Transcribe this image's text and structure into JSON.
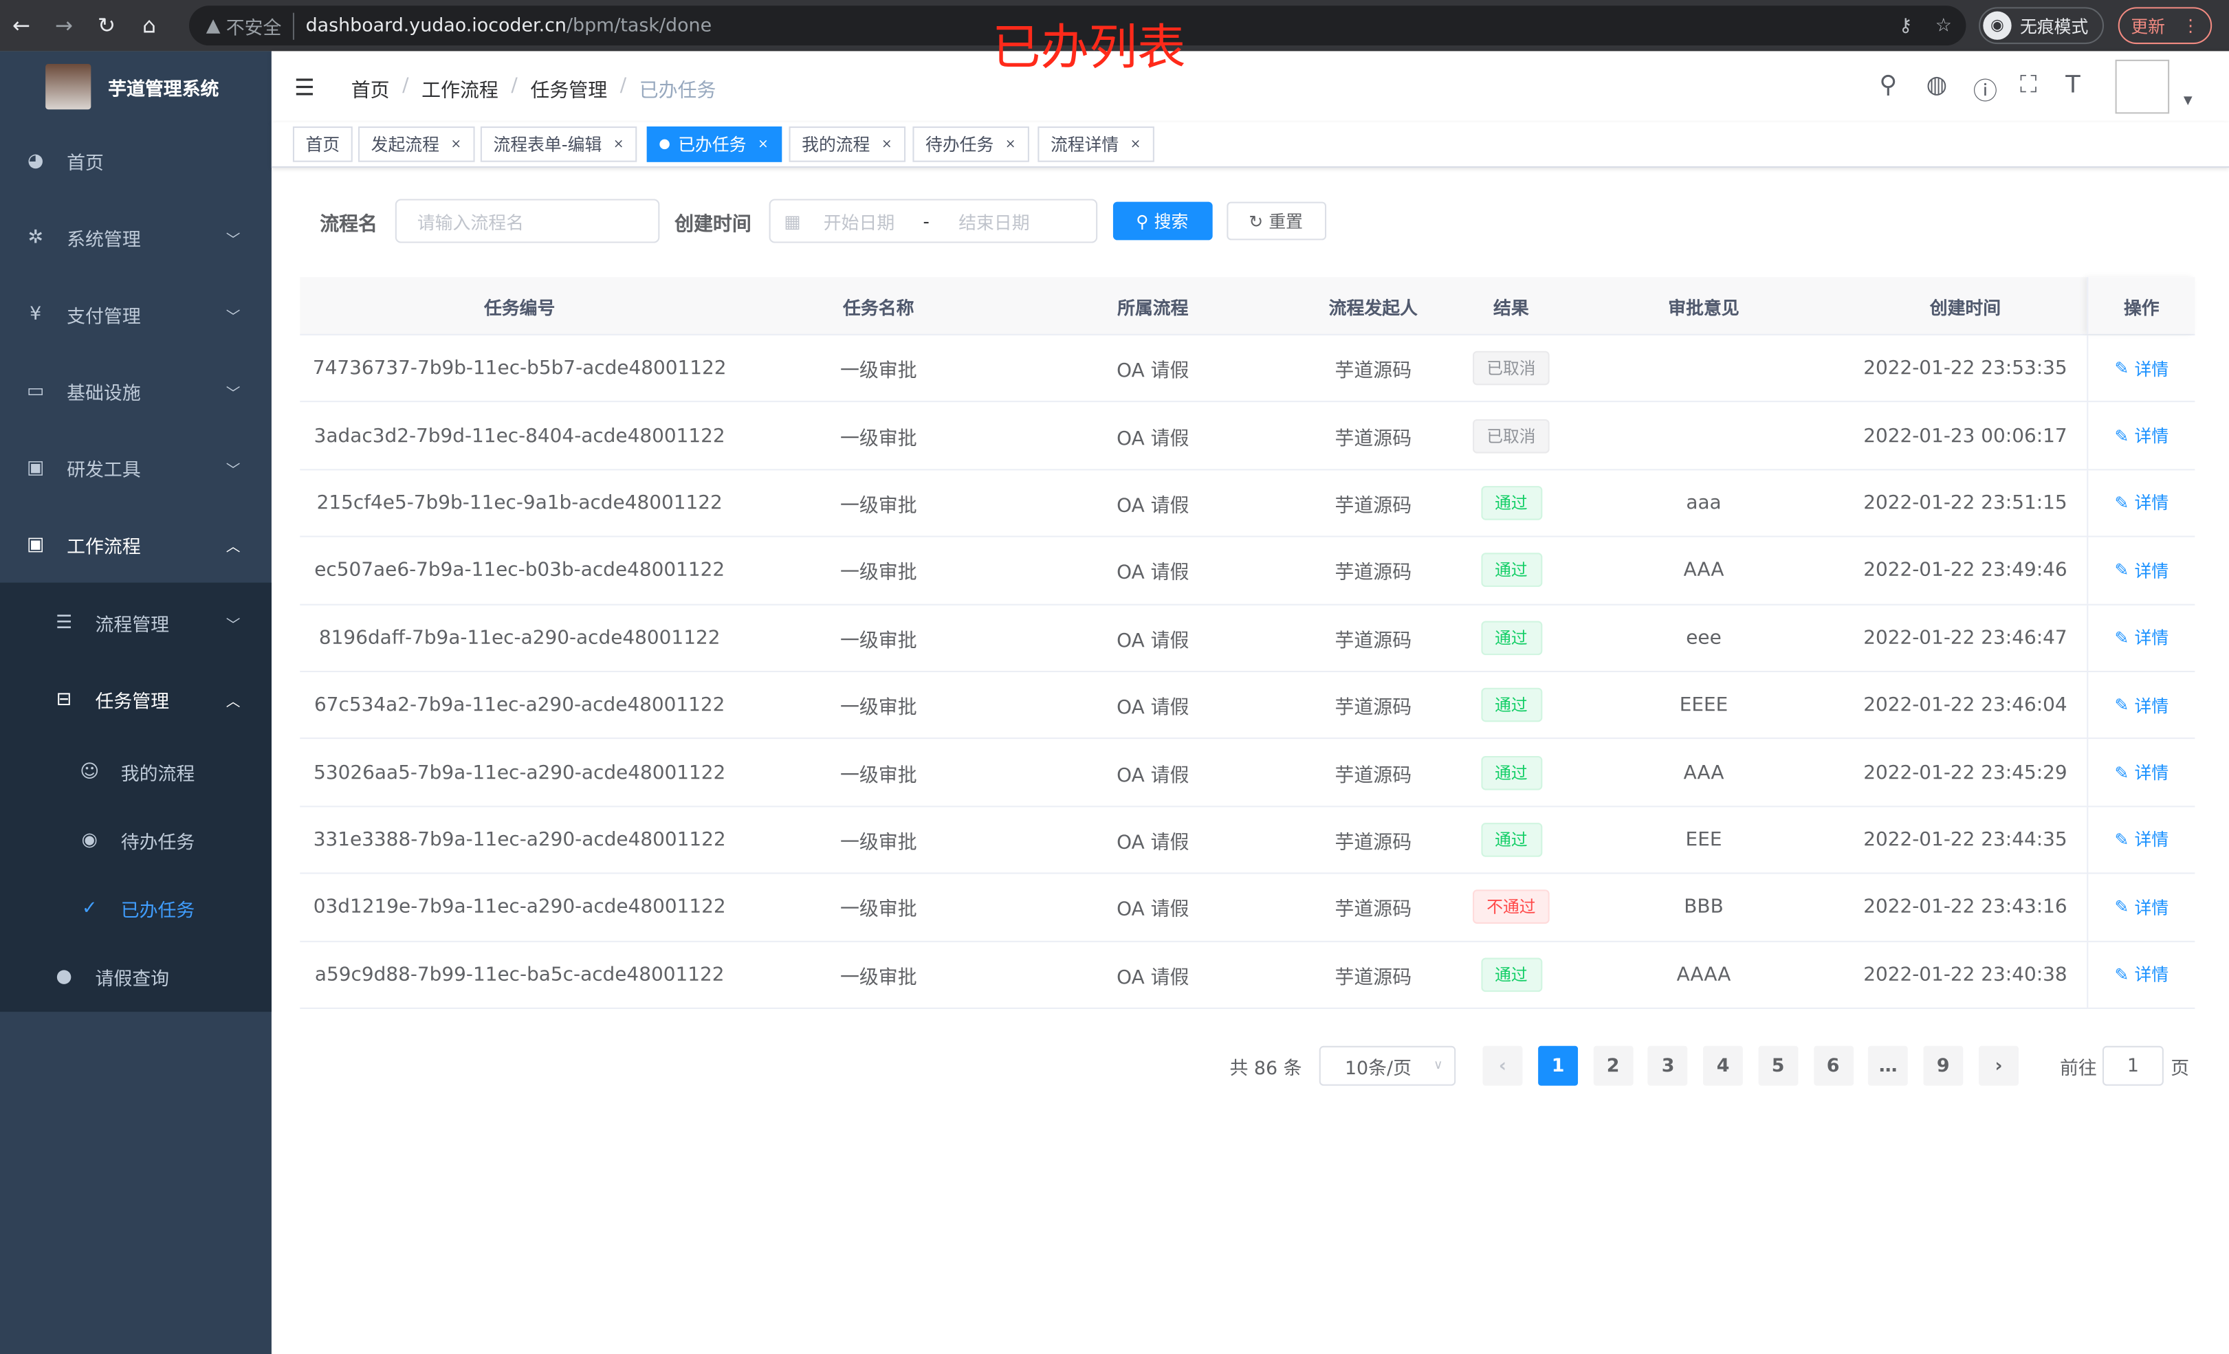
{
  "browser": {
    "insecure": "不安全",
    "url_host": "dashboard.yudao.iocoder.cn",
    "url_path": "/bpm/task/done",
    "incognito": "无痕模式",
    "update": "更新"
  },
  "annotation": "已办列表",
  "sidebar": {
    "title": "芋道管理系统",
    "items": [
      {
        "label": "首页",
        "icon": "dashboard-icon"
      },
      {
        "label": "系统管理",
        "icon": "gear-icon"
      },
      {
        "label": "支付管理",
        "icon": "yen-icon"
      },
      {
        "label": "基础设施",
        "icon": "monitor-icon"
      },
      {
        "label": "研发工具",
        "icon": "toolbox-icon"
      },
      {
        "label": "工作流程",
        "icon": "toolbox-icon"
      }
    ],
    "sub": [
      {
        "label": "流程管理"
      },
      {
        "label": "任务管理"
      }
    ],
    "subsub": [
      {
        "label": "我的流程"
      },
      {
        "label": "待办任务"
      },
      {
        "label": "已办任务"
      }
    ],
    "leave": "请假查询",
    "accent": "#409eff"
  },
  "breadcrumb": [
    "首页",
    "工作流程",
    "任务管理",
    "已办任务"
  ],
  "tags": [
    {
      "label": "首页"
    },
    {
      "label": "发起流程"
    },
    {
      "label": "流程表单-编辑"
    },
    {
      "label": "已办任务"
    },
    {
      "label": "我的流程"
    },
    {
      "label": "待办任务"
    },
    {
      "label": "流程详情"
    }
  ],
  "search": {
    "name_label": "流程名",
    "name_placeholder": "请输入流程名",
    "time_label": "创建时间",
    "start_placeholder": "开始日期",
    "range_sep": "-",
    "end_placeholder": "结束日期",
    "search": "搜索",
    "reset": "重置"
  },
  "table": {
    "headers": [
      "任务编号",
      "任务名称",
      "所属流程",
      "流程发起人",
      "结果",
      "审批意见",
      "创建时间",
      "操作"
    ],
    "action": "详情",
    "rows": [
      [
        "74736737-7b9b-11ec-b5b7-acde48001122",
        "一级审批",
        "OA 请假",
        "芋道源码",
        "已取消",
        "",
        "2022-01-22 23:53:35"
      ],
      [
        "3adac3d2-7b9d-11ec-8404-acde48001122",
        "一级审批",
        "OA 请假",
        "芋道源码",
        "已取消",
        "",
        "2022-01-23 00:06:17"
      ],
      [
        "215cf4e5-7b9b-11ec-9a1b-acde48001122",
        "一级审批",
        "OA 请假",
        "芋道源码",
        "通过",
        "aaa",
        "2022-01-22 23:51:15"
      ],
      [
        "ec507ae6-7b9a-11ec-b03b-acde48001122",
        "一级审批",
        "OA 请假",
        "芋道源码",
        "通过",
        "AAA",
        "2022-01-22 23:49:46"
      ],
      [
        "8196daff-7b9a-11ec-a290-acde48001122",
        "一级审批",
        "OA 请假",
        "芋道源码",
        "通过",
        "eee",
        "2022-01-22 23:46:47"
      ],
      [
        "67c534a2-7b9a-11ec-a290-acde48001122",
        "一级审批",
        "OA 请假",
        "芋道源码",
        "通过",
        "EEEE",
        "2022-01-22 23:46:04"
      ],
      [
        "53026aa5-7b9a-11ec-a290-acde48001122",
        "一级审批",
        "OA 请假",
        "芋道源码",
        "通过",
        "AAA",
        "2022-01-22 23:45:29"
      ],
      [
        "331e3388-7b9a-11ec-a290-acde48001122",
        "一级审批",
        "OA 请假",
        "芋道源码",
        "通过",
        "EEE",
        "2022-01-22 23:44:35"
      ],
      [
        "03d1219e-7b9a-11ec-a290-acde48001122",
        "一级审批",
        "OA 请假",
        "芋道源码",
        "不通过",
        "BBB",
        "2022-01-22 23:43:16"
      ],
      [
        "a59c9d88-7b99-11ec-ba5c-acde48001122",
        "一级审批",
        "OA 请假",
        "芋道源码",
        "通过",
        "AAAA",
        "2022-01-22 23:40:38"
      ]
    ]
  },
  "pagination": {
    "total": "共 86 条",
    "page_size": "10条/页",
    "pages": [
      "1",
      "2",
      "3",
      "4",
      "5",
      "6",
      "…",
      "9"
    ],
    "current": "1",
    "goto_label": "前往",
    "goto_value": "1",
    "page_suffix": "页"
  }
}
